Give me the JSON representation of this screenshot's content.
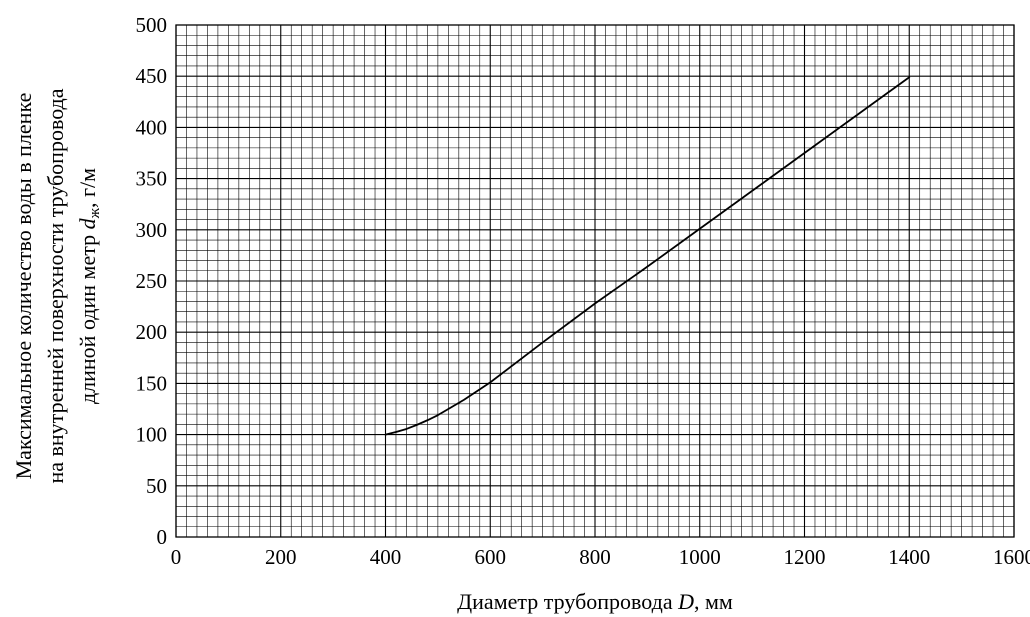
{
  "chart_data": {
    "type": "line",
    "title": "",
    "xlabel": {
      "prefix": "Диаметр трубопровода ",
      "symbol": "D",
      "suffix": ", мм"
    },
    "ylabel": {
      "line1": "Максимальное количество воды в пленке",
      "line2": "на внутренней поверхности трубопровода",
      "line3_prefix": "длиной один метр ",
      "line3_symbol": "d",
      "line3_subscript": "ж",
      "line3_suffix": ", г/м"
    },
    "xlim": [
      0,
      1600
    ],
    "ylim": [
      0,
      500
    ],
    "x_ticks": [
      0,
      200,
      400,
      600,
      800,
      1000,
      1200,
      1400,
      1600
    ],
    "y_ticks": [
      0,
      50,
      100,
      150,
      200,
      250,
      300,
      350,
      400,
      450,
      500
    ],
    "x_minor_step": 20,
    "y_minor_step": 10,
    "grid": true,
    "series": [
      {
        "x": [
          400,
          420,
          440,
          460,
          480,
          500,
          520,
          550,
          600,
          700,
          800,
          900,
          1000,
          1100,
          1200,
          1300,
          1400
        ],
        "y": [
          100,
          102.5,
          105.5,
          109.5,
          114,
          119,
          125,
          134,
          151,
          190,
          228,
          264,
          301,
          338,
          375,
          412,
          449
        ]
      }
    ]
  }
}
